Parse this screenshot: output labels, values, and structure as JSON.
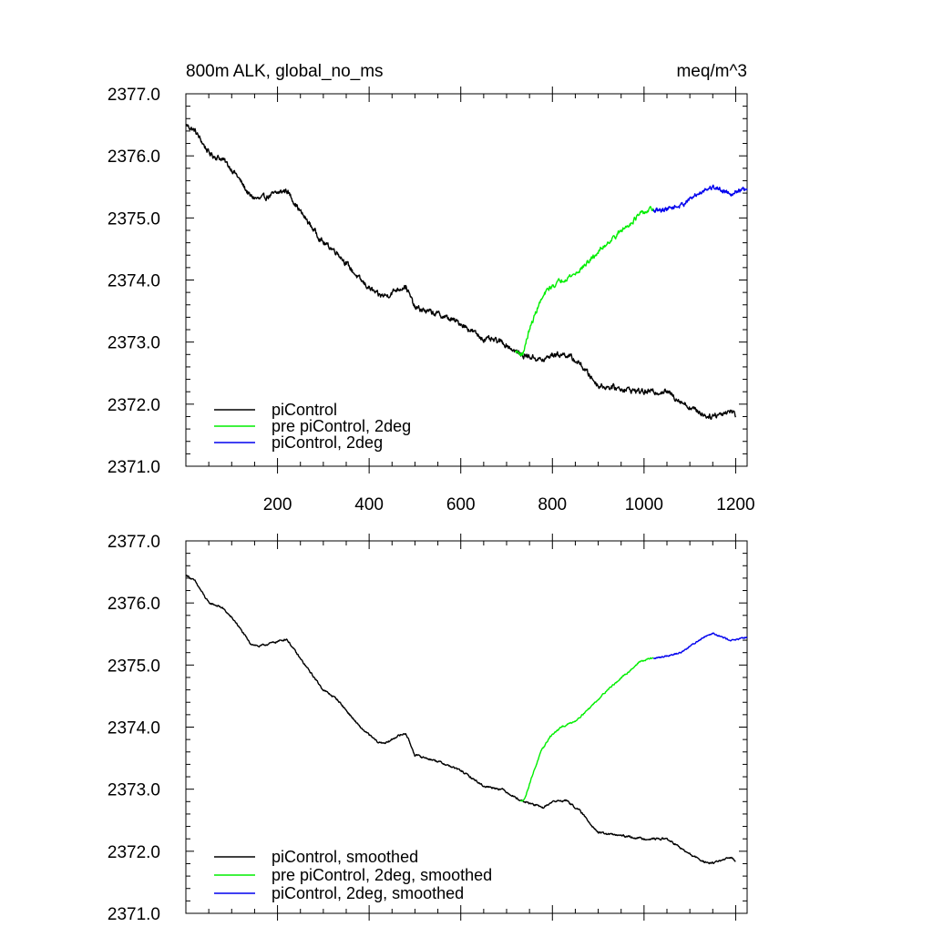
{
  "chart_data": [
    {
      "type": "line",
      "title_left": "800m ALK, global_no_ms",
      "title_right": "meq/m^3",
      "xlim": [
        0,
        1225
      ],
      "ylim": [
        2371.0,
        2377.0
      ],
      "x_ticks": [
        200,
        400,
        600,
        800,
        1000,
        1200
      ],
      "x_tick_labels": [
        "200",
        "400",
        "600",
        "800",
        "1000",
        "1200"
      ],
      "y_ticks": [
        2371.0,
        2372.0,
        2373.0,
        2374.0,
        2375.0,
        2376.0,
        2377.0
      ],
      "y_tick_labels": [
        "2371.0",
        "2372.0",
        "2373.0",
        "2374.0",
        "2375.0",
        "2376.0",
        "2377.0"
      ],
      "legend": [
        {
          "label": "piControl",
          "color": "#000000"
        },
        {
          "label": "pre piControl, 2deg",
          "color": "#00ee00"
        },
        {
          "label": "piControl, 2deg",
          "color": "#0000ee"
        }
      ],
      "series": [
        {
          "name": "piControl",
          "color": "#000000",
          "noise": 0.035,
          "x": [
            1,
            20,
            50,
            60,
            80,
            110,
            140,
            160,
            200,
            220,
            250,
            300,
            330,
            380,
            420,
            440,
            460,
            480,
            500,
            550,
            600,
            650,
            690,
            730,
            760,
            780,
            800,
            830,
            860,
            900,
            950,
            1000,
            1050,
            1100,
            1140,
            1170,
            1190,
            1200
          ],
          "y": [
            2376.5,
            2376.4,
            2376.05,
            2376.0,
            2375.95,
            2375.7,
            2375.35,
            2375.3,
            2375.4,
            2375.45,
            2375.1,
            2374.6,
            2374.45,
            2374.0,
            2373.75,
            2373.75,
            2373.85,
            2373.9,
            2373.55,
            2373.45,
            2373.3,
            2373.05,
            2373.0,
            2372.8,
            2372.75,
            2372.7,
            2372.8,
            2372.8,
            2372.65,
            2372.3,
            2372.25,
            2372.2,
            2372.2,
            2371.95,
            2371.8,
            2371.85,
            2371.9,
            2371.82
          ]
        },
        {
          "name": "pre piControl, 2deg",
          "color": "#00ee00",
          "noise": 0.03,
          "x": [
            720,
            735,
            750,
            770,
            790,
            820,
            850,
            880,
            920,
            960,
            990,
            1020
          ],
          "y": [
            2372.85,
            2372.8,
            2373.2,
            2373.6,
            2373.85,
            2374.0,
            2374.1,
            2374.3,
            2374.6,
            2374.85,
            2375.05,
            2375.15
          ]
        },
        {
          "name": "piControl, 2deg",
          "color": "#0000ee",
          "noise": 0.03,
          "x": [
            1020,
            1050,
            1080,
            1100,
            1130,
            1150,
            1170,
            1190,
            1210,
            1225
          ],
          "y": [
            2375.1,
            2375.15,
            2375.2,
            2375.3,
            2375.45,
            2375.5,
            2375.45,
            2375.4,
            2375.45,
            2375.45
          ]
        }
      ]
    },
    {
      "type": "line",
      "xlim": [
        0,
        1225
      ],
      "ylim": [
        2371.0,
        2377.0
      ],
      "x_ticks": [
        200,
        400,
        600,
        800,
        1000,
        1200
      ],
      "y_ticks": [
        2371.0,
        2372.0,
        2373.0,
        2374.0,
        2375.0,
        2376.0,
        2377.0
      ],
      "y_tick_labels": [
        "2371.0",
        "2372.0",
        "2373.0",
        "2374.0",
        "2375.0",
        "2376.0",
        "2377.0"
      ],
      "legend": [
        {
          "label": "piControl, smoothed",
          "color": "#000000"
        },
        {
          "label": "pre piControl, 2deg, smoothed",
          "color": "#00ee00"
        },
        {
          "label": "piControl, 2deg, smoothed",
          "color": "#0000ee"
        }
      ],
      "series": [
        {
          "name": "piControl, smoothed",
          "color": "#000000",
          "noise": 0.012,
          "x": [
            1,
            20,
            50,
            60,
            80,
            110,
            140,
            160,
            200,
            220,
            250,
            300,
            330,
            380,
            420,
            440,
            460,
            480,
            500,
            550,
            600,
            650,
            690,
            730,
            760,
            780,
            800,
            830,
            860,
            900,
            950,
            1000,
            1050,
            1100,
            1140,
            1170,
            1190,
            1200
          ],
          "y": [
            2376.45,
            2376.35,
            2376.0,
            2375.98,
            2375.92,
            2375.68,
            2375.35,
            2375.3,
            2375.38,
            2375.42,
            2375.1,
            2374.6,
            2374.45,
            2374.0,
            2373.75,
            2373.75,
            2373.85,
            2373.9,
            2373.55,
            2373.45,
            2373.3,
            2373.05,
            2373.0,
            2372.82,
            2372.75,
            2372.7,
            2372.8,
            2372.82,
            2372.65,
            2372.3,
            2372.25,
            2372.2,
            2372.2,
            2371.95,
            2371.8,
            2371.85,
            2371.9,
            2371.85
          ]
        },
        {
          "name": "pre piControl, 2deg, smoothed",
          "color": "#00ee00",
          "noise": 0.01,
          "x": [
            730,
            740,
            755,
            775,
            795,
            820,
            850,
            880,
            920,
            960,
            990,
            1020
          ],
          "y": [
            2372.8,
            2372.85,
            2373.2,
            2373.6,
            2373.85,
            2374.0,
            2374.1,
            2374.3,
            2374.6,
            2374.85,
            2375.05,
            2375.12
          ]
        },
        {
          "name": "piControl, 2deg, smoothed",
          "color": "#0000ee",
          "noise": 0.01,
          "x": [
            1020,
            1050,
            1080,
            1100,
            1130,
            1150,
            1170,
            1190,
            1210,
            1225
          ],
          "y": [
            2375.1,
            2375.15,
            2375.2,
            2375.3,
            2375.45,
            2375.52,
            2375.45,
            2375.4,
            2375.42,
            2375.45
          ]
        }
      ]
    }
  ]
}
